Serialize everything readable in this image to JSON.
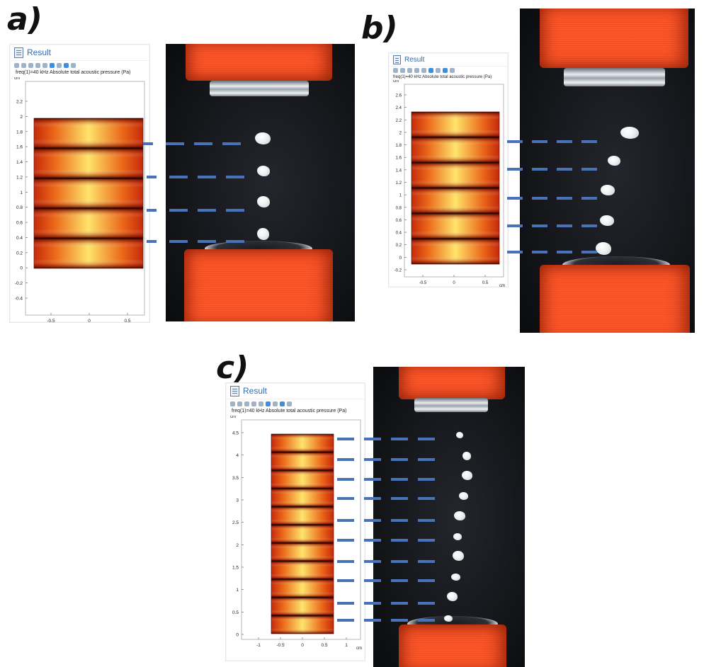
{
  "figure": {
    "accent_color": "#4a72b8",
    "panels": [
      {
        "id": "a",
        "label": "a)",
        "result_title": "Result",
        "plot_title": "freq(1)=40 kHz   Absolute total acoustic pressure (Pa)",
        "y_unit": "cm",
        "x_unit": "cm",
        "y_ticks": [
          "2.2",
          "2",
          "1.8",
          "1.6",
          "1.4",
          "1.2",
          "1",
          "0.8",
          "0.6",
          "0.4",
          "0.2",
          "0",
          "-0.2",
          "-0.4"
        ],
        "x_ticks": [
          "-0.5",
          "0",
          "0.5"
        ],
        "nodes": 4,
        "beads": 4,
        "colormap": "heat"
      },
      {
        "id": "b",
        "label": "b)",
        "result_title": "Result",
        "plot_title": "freq(1)=40 kHz   Absolute total acoustic pressure (Pa)",
        "y_unit": "cm",
        "x_unit": "cm",
        "y_ticks": [
          "2.6",
          "2.4",
          "2.2",
          "2",
          "1.8",
          "1.6",
          "1.4",
          "1.2",
          "1",
          "0.8",
          "0.6",
          "0.4",
          "0.2",
          "0",
          "-0.2"
        ],
        "x_ticks": [
          "-0.5",
          "0",
          "0.5"
        ],
        "nodes": 5,
        "beads": 5,
        "colormap": "heat"
      },
      {
        "id": "c",
        "label": "c)",
        "result_title": "Result",
        "plot_title": "freq(1)=40 kHz   Absolute total acoustic pressure (Pa)",
        "y_unit": "cm",
        "x_unit": "cm",
        "y_ticks": [
          "4.5",
          "4",
          "3.5",
          "3",
          "2.5",
          "2",
          "1.5",
          "1",
          "0.5",
          "0"
        ],
        "x_ticks": [
          "-1",
          "-0.5",
          "0",
          "0.5",
          "1"
        ],
        "nodes": 10,
        "beads": 10,
        "colormap": "heat"
      }
    ]
  }
}
